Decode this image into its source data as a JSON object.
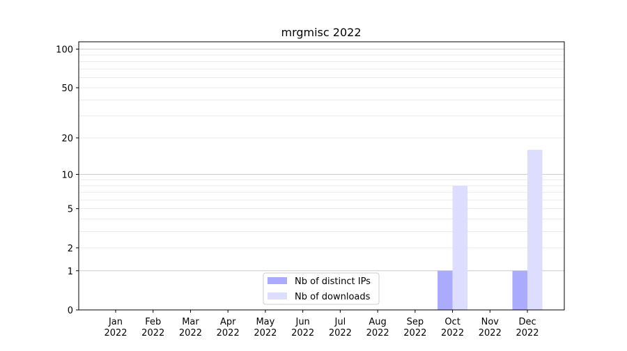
{
  "chart_data": {
    "type": "bar",
    "title": "mrgmisc 2022",
    "xlabel": "",
    "ylabel": "",
    "yscale": "log(1+y)",
    "ylim": [
      0,
      114
    ],
    "yticks": [
      0,
      1,
      2,
      5,
      10,
      20,
      50,
      100
    ],
    "ytick_labels": [
      "0",
      "1",
      "2",
      "5",
      "10",
      "20",
      "50",
      "100"
    ],
    "categories": [
      "Jan\n2022",
      "Feb\n2022",
      "Mar\n2022",
      "Apr\n2022",
      "May\n2022",
      "Jun\n2022",
      "Jul\n2022",
      "Aug\n2022",
      "Sep\n2022",
      "Oct\n2022",
      "Nov\n2022",
      "Dec\n2022"
    ],
    "category_lines": [
      [
        "Jan",
        "2022"
      ],
      [
        "Feb",
        "2022"
      ],
      [
        "Mar",
        "2022"
      ],
      [
        "Apr",
        "2022"
      ],
      [
        "May",
        "2022"
      ],
      [
        "Jun",
        "2022"
      ],
      [
        "Jul",
        "2022"
      ],
      [
        "Aug",
        "2022"
      ],
      [
        "Sep",
        "2022"
      ],
      [
        "Oct",
        "2022"
      ],
      [
        "Nov",
        "2022"
      ],
      [
        "Dec",
        "2022"
      ]
    ],
    "series": [
      {
        "name": "Nb of distinct IPs",
        "color": "#aaaaff",
        "values": [
          0,
          0,
          0,
          0,
          0,
          0,
          0,
          0,
          0,
          1,
          0,
          1
        ]
      },
      {
        "name": "Nb of downloads",
        "color": "#ddddff",
        "values": [
          0,
          0,
          0,
          0,
          0,
          0,
          0,
          0,
          0,
          8,
          0,
          16
        ]
      }
    ],
    "grid": true,
    "legend_position": "bottom-center"
  }
}
